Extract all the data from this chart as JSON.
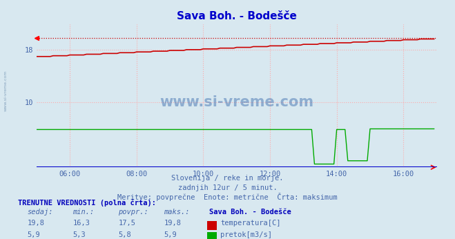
{
  "title": "Sava Boh. - Bodešče",
  "bg_color": "#d8e8f0",
  "plot_bg_color": "#d8e8f0",
  "title_color": "#0000cc",
  "text_color": "#4466aa",
  "xmin": 0,
  "xmax": 144,
  "ymin": 0,
  "ymax": 22,
  "yticks": [
    10,
    18
  ],
  "xtick_labels": [
    "06:00",
    "08:00",
    "10:00",
    "12:00",
    "14:00",
    "16:00"
  ],
  "xtick_positions": [
    12,
    36,
    60,
    84,
    108,
    132
  ],
  "temp_color": "#cc0000",
  "flow_color": "#00aa00",
  "max_temp": 19.8,
  "subtitle1": "Slovenija / reke in morje.",
  "subtitle2": "zadnjih 12ur / 5 minut.",
  "subtitle3": "Meritve: povprečne  Enote: metrične  Črta: maksimum",
  "footer_label": "TRENUTNE VREDNOSTI (polna črta):",
  "col_sedaj": "sedaj:",
  "col_min": "min.:",
  "col_povpr": "povpr.:",
  "col_maks": "maks.:",
  "col_station": "Sava Boh. - Bodešče",
  "temp_sedaj": "19,8",
  "temp_min": "16,3",
  "temp_povpr": "17,5",
  "temp_maks": "19,8",
  "temp_label": "temperatura[C]",
  "flow_sedaj": "5,9",
  "flow_min": "5,3",
  "flow_povpr": "5,8",
  "flow_maks": "5,9",
  "flow_label": "pretok[m3/s]",
  "watermark": "www.si-vreme.com"
}
